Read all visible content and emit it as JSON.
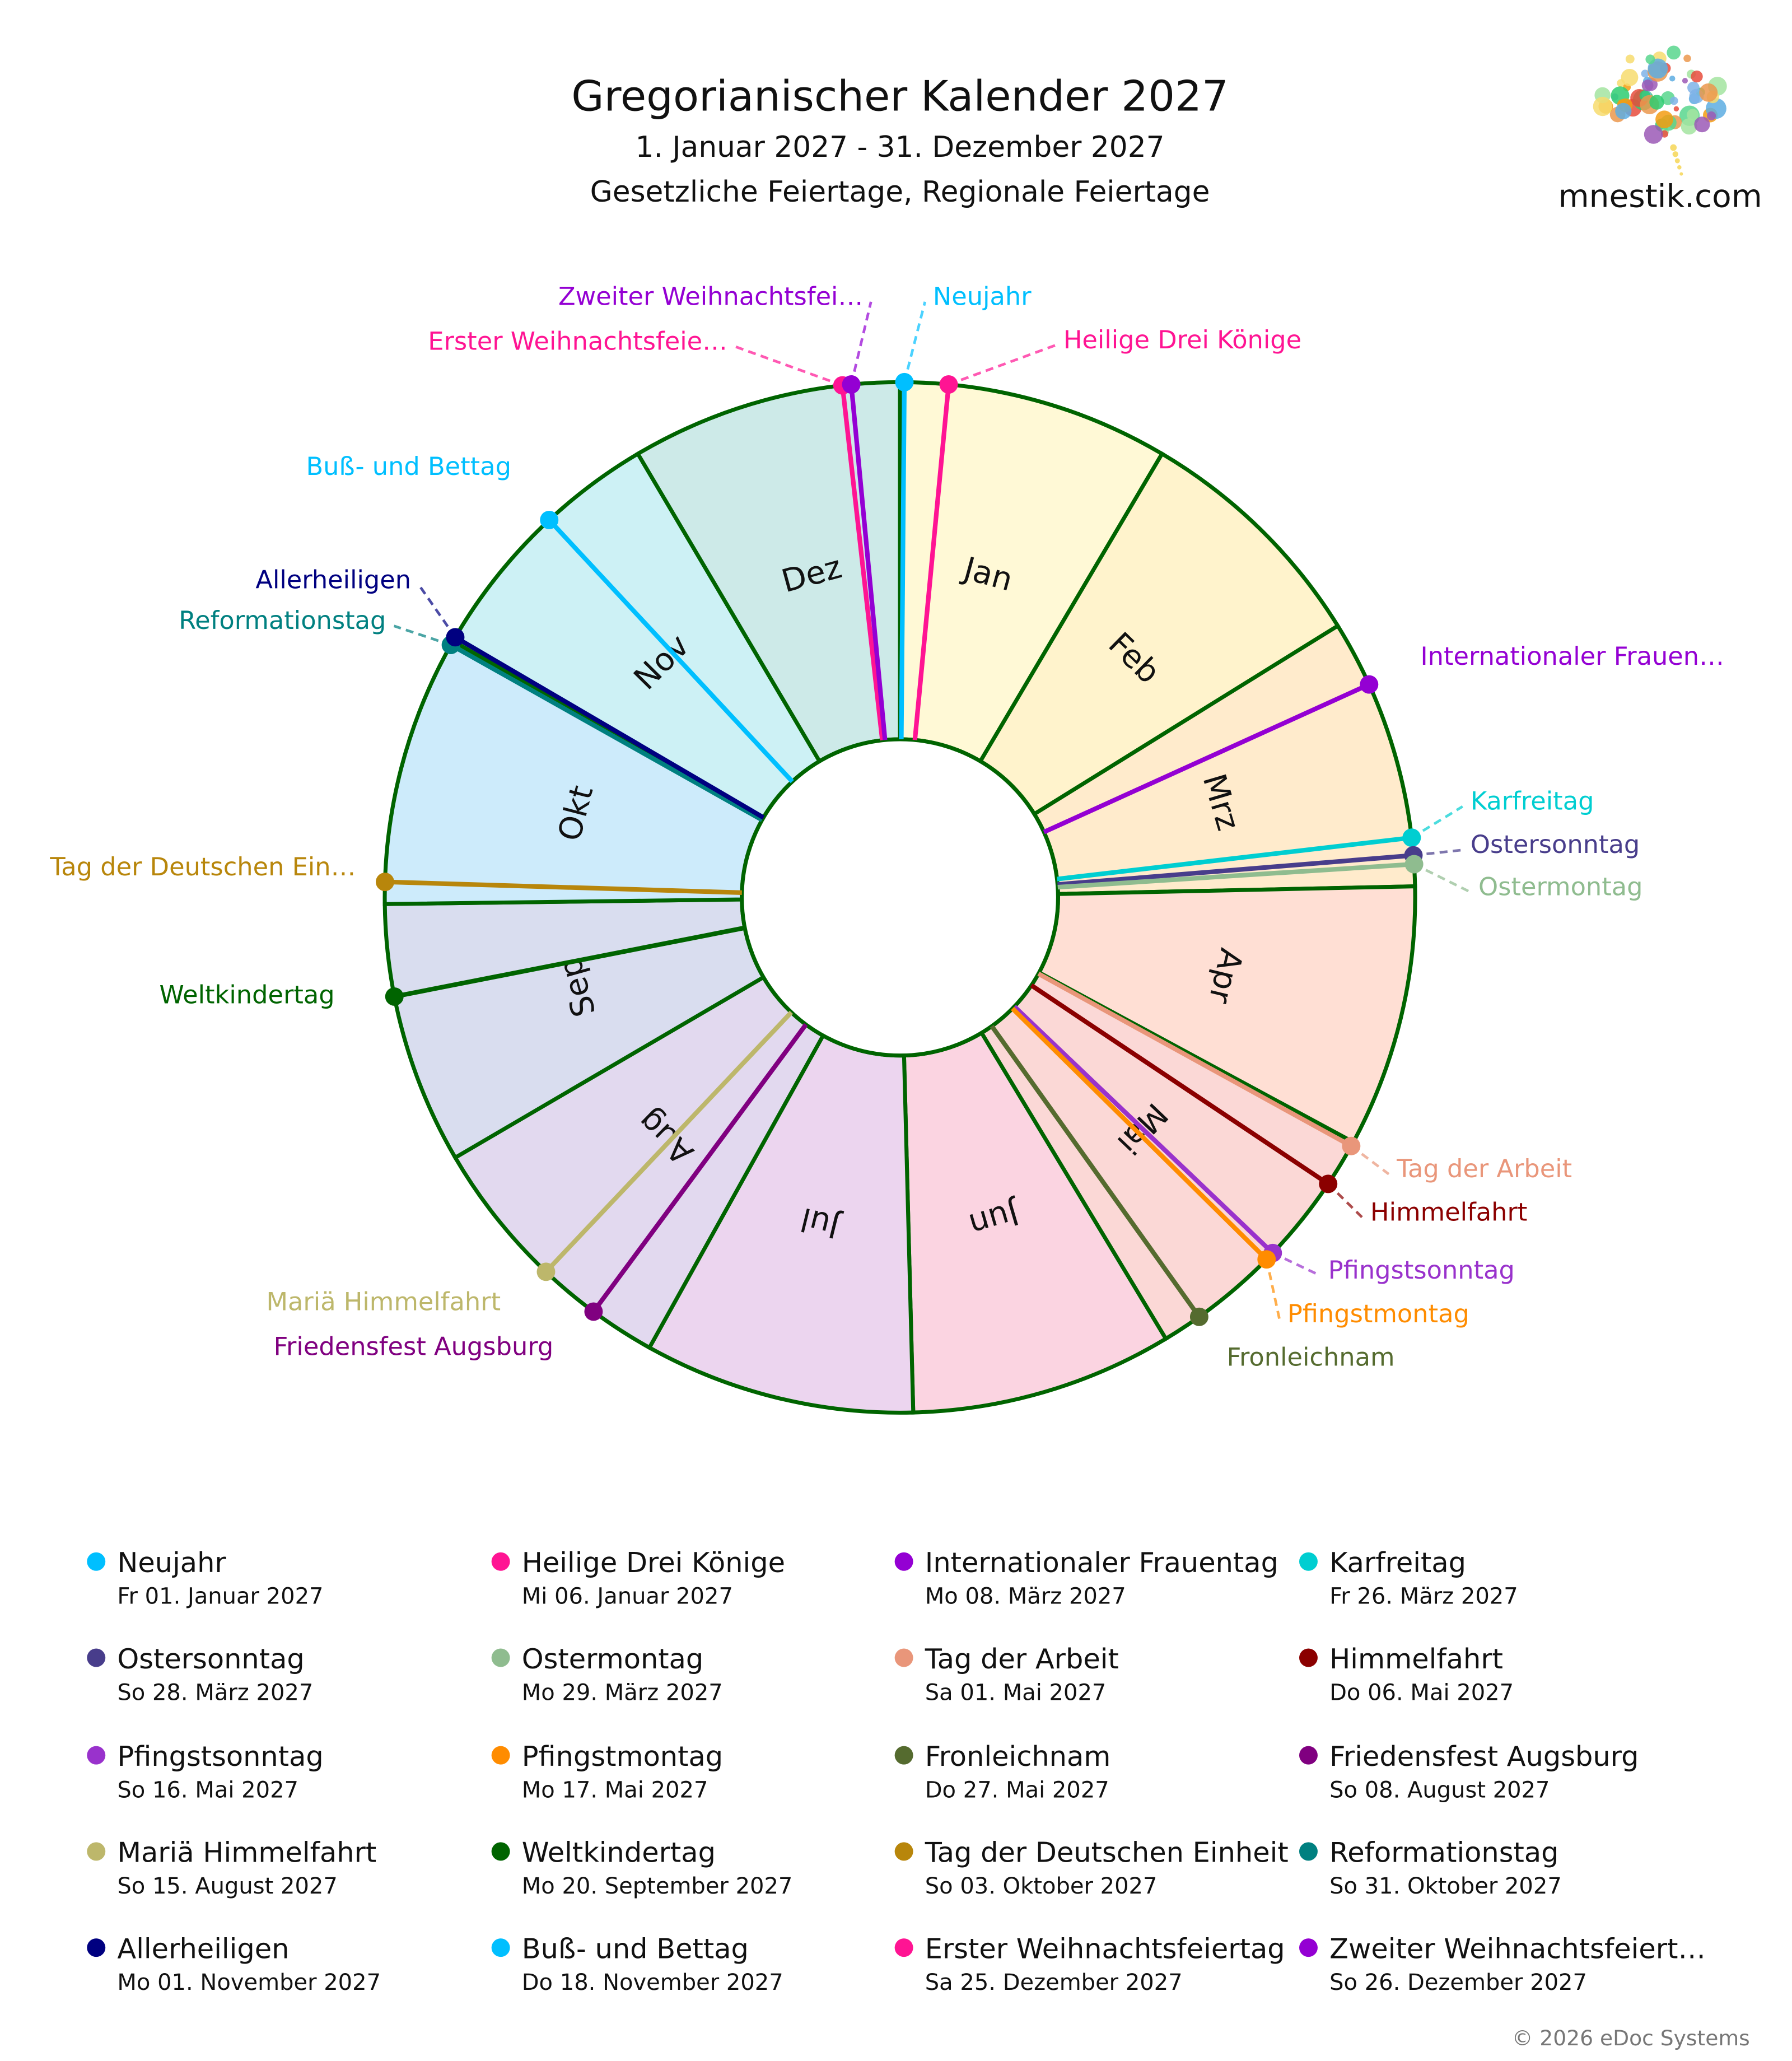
{
  "header": {
    "title": "Gregorianischer Kalender 2027",
    "subtitle": "1. Januar 2027 - 31. Dezember 2027",
    "subtitle2": "Gesetzliche Feiertage, Regionale Feiertage"
  },
  "logo": {
    "text": "mnestik.com",
    "letters": "mnestik"
  },
  "footer": {
    "copyright": "© 2026 eDoc Systems"
  },
  "chart_data": {
    "type": "pie",
    "variant": "donut, clockwise from top, one segment per month, sized by days",
    "year": 2027,
    "segment_stroke": "#006400",
    "months": [
      {
        "label": "Jan",
        "days": 31,
        "color": "#fff9d6"
      },
      {
        "label": "Feb",
        "days": 28,
        "color": "#fff3cc"
      },
      {
        "label": "Mrz",
        "days": 31,
        "color": "#ffebcc"
      },
      {
        "label": "Apr",
        "days": 30,
        "color": "#ffdfd4"
      },
      {
        "label": "Mai",
        "days": 31,
        "color": "#fbd8d6"
      },
      {
        "label": "Jun",
        "days": 30,
        "color": "#fbd4e1"
      },
      {
        "label": "Jul",
        "days": 31,
        "color": "#ecd5ef"
      },
      {
        "label": "Aug",
        "days": 31,
        "color": "#e2d9ef"
      },
      {
        "label": "Sep",
        "days": 30,
        "color": "#d9ddef"
      },
      {
        "label": "Okt",
        "days": 31,
        "color": "#cdebfb"
      },
      {
        "label": "Nov",
        "days": 30,
        "color": "#cdf1f5"
      },
      {
        "label": "Dez",
        "days": 31,
        "color": "#cdeae8"
      }
    ],
    "holidays": [
      {
        "name": "Neujahr",
        "label": "Neujahr",
        "date": "Fr 01. Januar 2027",
        "color": "#00bfff"
      },
      {
        "name": "Heilige Drei Könige",
        "label": "Heilige Drei Könige",
        "date": "Mi 06. Januar 2027",
        "color": "#ff1493"
      },
      {
        "name": "Internationaler Frauentag",
        "label": "Internationaler Frauen…",
        "date": "Mo 08. März 2027",
        "color": "#9400d3"
      },
      {
        "name": "Karfreitag",
        "label": "Karfreitag",
        "date": "Fr 26. März 2027",
        "color": "#00ced1"
      },
      {
        "name": "Ostersonntag",
        "label": "Ostersonntag",
        "date": "So 28. März 2027",
        "color": "#483d8b"
      },
      {
        "name": "Ostermontag",
        "label": "Ostermontag",
        "date": "Mo 29. März 2027",
        "color": "#8fbc8f"
      },
      {
        "name": "Tag der Arbeit",
        "label": "Tag der Arbeit",
        "date": "Sa 01. Mai 2027",
        "color": "#e9967a"
      },
      {
        "name": "Himmelfahrt",
        "label": "Himmelfahrt",
        "date": "Do 06. Mai 2027",
        "color": "#8b0000"
      },
      {
        "name": "Pfingstsonntag",
        "label": "Pfingstsonntag",
        "date": "So 16. Mai 2027",
        "color": "#9932cc"
      },
      {
        "name": "Pfingstmontag",
        "label": "Pfingstmontag",
        "date": "Mo 17. Mai 2027",
        "color": "#ff8c00"
      },
      {
        "name": "Fronleichnam",
        "label": "Fronleichnam",
        "date": "Do 27. Mai 2027",
        "color": "#556b2f"
      },
      {
        "name": "Friedensfest Augsburg",
        "label": "Friedensfest Augsburg",
        "date": "So 08. August 2027",
        "color": "#800080"
      },
      {
        "name": "Mariä Himmelfahrt",
        "label": "Mariä Himmelfahrt",
        "date": "So 15. August 2027",
        "color": "#bdb76b"
      },
      {
        "name": "Weltkindertag",
        "label": "Weltkindertag",
        "date": "Mo 20. September 2027",
        "color": "#006400"
      },
      {
        "name": "Tag der Deutschen Einheit",
        "label": "Tag der Deutschen Ein…",
        "date": "So 03. Oktober 2027",
        "color": "#b8860b"
      },
      {
        "name": "Reformationstag",
        "label": "Reformationstag",
        "date": "So 31. Oktober 2027",
        "color": "#008080"
      },
      {
        "name": "Allerheiligen",
        "label": "Allerheiligen",
        "date": "Mo 01. November 2027",
        "color": "#000080"
      },
      {
        "name": "Buß- und Bettag",
        "label": "Buß- und Bettag",
        "date": "Do 18. November 2027",
        "color": "#00bfff"
      },
      {
        "name": "Erster Weihnachtsfeiertag",
        "label": "Erster Weihnachtsfeie…",
        "date": "Sa 25. Dezember 2027",
        "color": "#ff1493"
      },
      {
        "name": "Zweiter Weihnachtsfeiert…",
        "label": "Zweiter Weihnachtsfei…",
        "date": "So 26. Dezember 2027",
        "color": "#9400d3"
      }
    ]
  }
}
